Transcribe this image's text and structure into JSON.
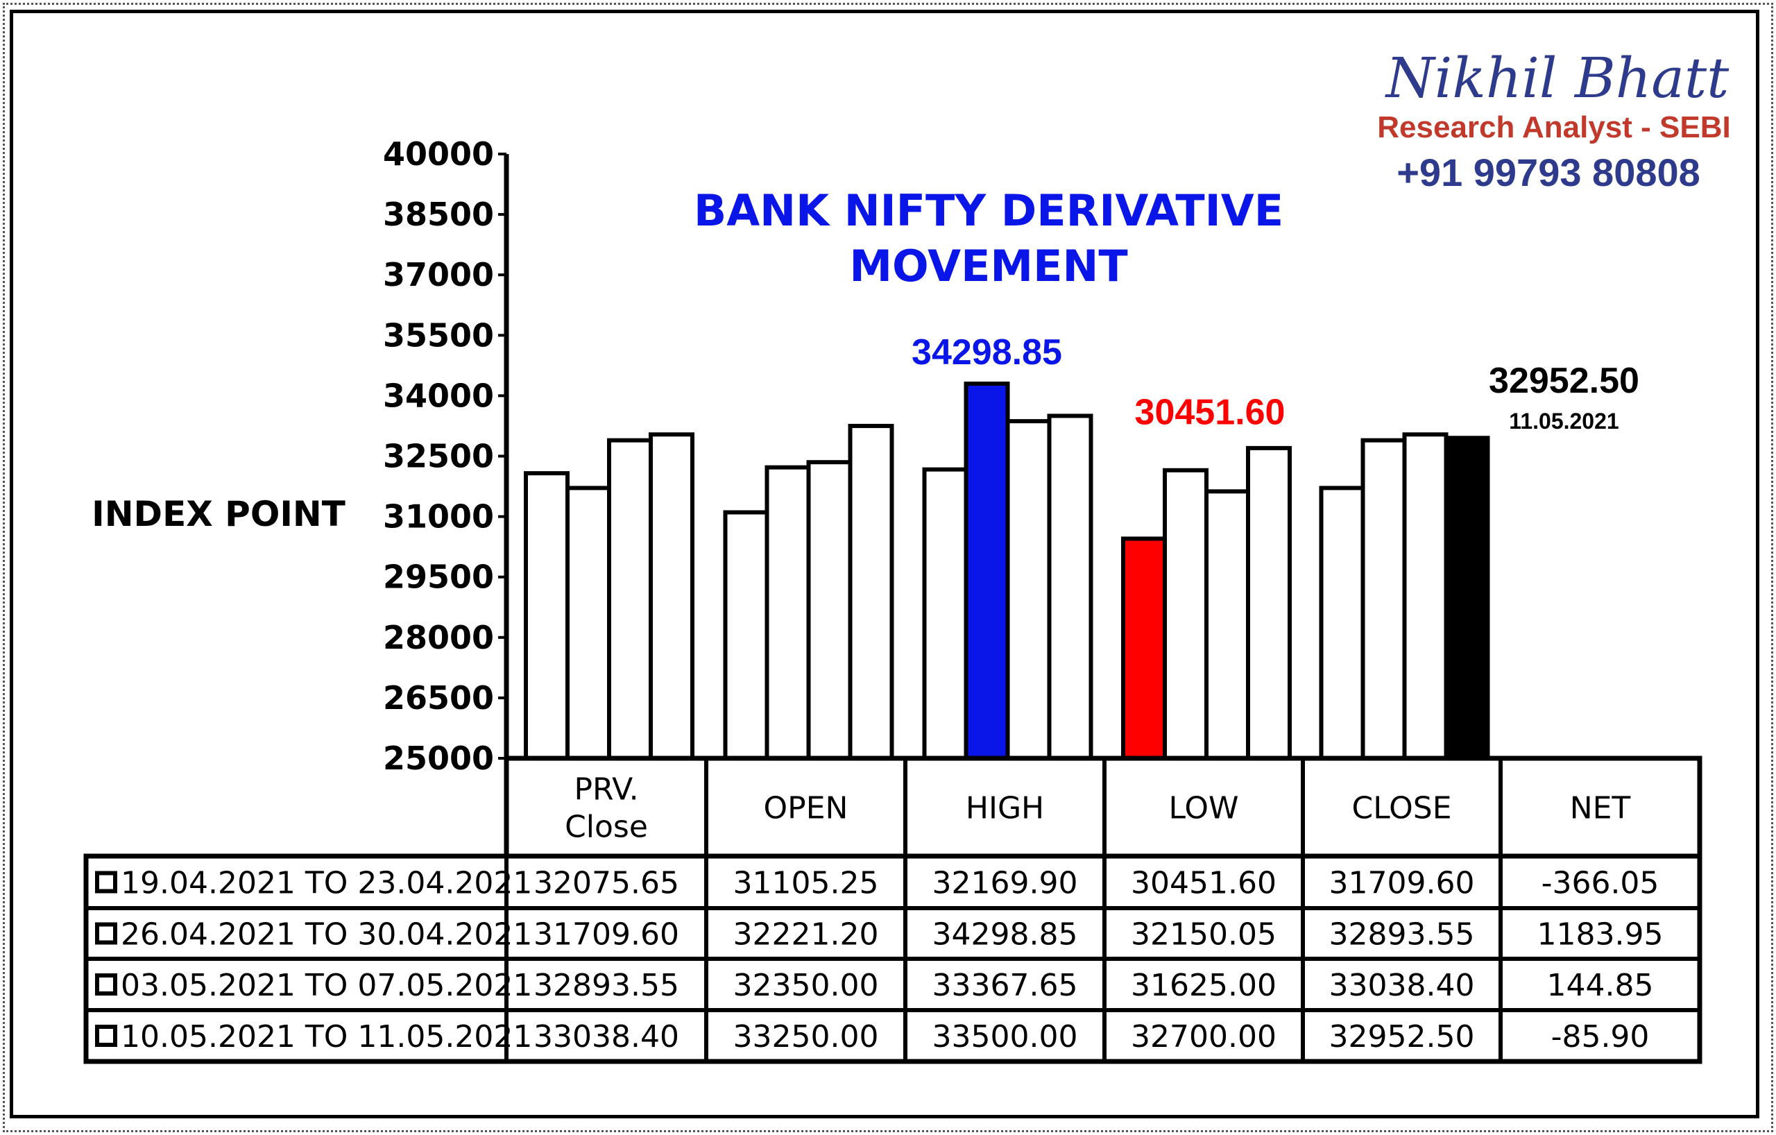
{
  "brand": {
    "name": "Nikhil Bhatt",
    "role": "Research Analyst - SEBI",
    "phone": "+91 99793 80808"
  },
  "colors": {
    "title": "#0a16e8",
    "high_highlight": "#0a16e8",
    "low_highlight": "#ff0000",
    "latest_close": "#000000",
    "bar_default": "#ffffff"
  },
  "chart_data": {
    "type": "bar",
    "title": "BANK NIFTY DERIVATIVE MOVEMENT",
    "title_lines": [
      "BANK NIFTY DERIVATIVE",
      "MOVEMENT"
    ],
    "ylabel": "INDEX POINT",
    "ylim": [
      25000,
      40000
    ],
    "yticks": [
      25000,
      26500,
      28000,
      29500,
      31000,
      32500,
      34000,
      35500,
      37000,
      38500,
      40000
    ],
    "grid": false,
    "legend": "table-below",
    "categories": [
      "PRV.\nClose",
      "OPEN",
      "HIGH",
      "LOW",
      "CLOSE"
    ],
    "category_lines": [
      [
        "PRV.",
        "Close"
      ],
      [
        "OPEN"
      ],
      [
        "HIGH"
      ],
      [
        "LOW"
      ],
      [
        "CLOSE"
      ]
    ],
    "series": [
      {
        "name": "19.04.2021 TO 23.04.2021",
        "values": [
          32075.65,
          31105.25,
          32169.9,
          30451.6,
          31709.6
        ]
      },
      {
        "name": "26.04.2021 TO 30.04.2021",
        "values": [
          31709.6,
          32221.2,
          34298.85,
          32150.05,
          32893.55
        ]
      },
      {
        "name": "03.05.2021 TO 07.05.2021",
        "values": [
          32893.55,
          32350.0,
          33367.65,
          31625.0,
          33038.4
        ]
      },
      {
        "name": "10.05.2021 TO 11.05.2021",
        "values": [
          33038.4,
          33250.0,
          33500.0,
          32700.0,
          32952.5
        ]
      }
    ],
    "highlights": [
      {
        "category": 2,
        "series": 1,
        "color": "#0a16e8"
      },
      {
        "category": 3,
        "series": 0,
        "color": "#ff0000"
      },
      {
        "category": 4,
        "series": 3,
        "color": "#000000"
      }
    ],
    "annotations": [
      {
        "text": "34298.85",
        "category": 2,
        "series": 1,
        "color": "#0a16e8"
      },
      {
        "text": "30451.60",
        "category": 3,
        "series": 0,
        "color": "#ff0000"
      },
      {
        "text": "32952.50",
        "sub": "11.05.2021",
        "category": 4,
        "series": 3,
        "color": "#000000"
      }
    ],
    "table": {
      "columns": [
        "PRV.\nClose",
        "OPEN",
        "HIGH",
        "LOW",
        "CLOSE",
        "NET"
      ],
      "rows": [
        {
          "label": "19.04.2021 TO 23.04.2021",
          "cells": [
            "32075.65",
            "31105.25",
            "32169.90",
            "30451.60",
            "31709.60",
            "-366.05"
          ]
        },
        {
          "label": "26.04.2021 TO 30.04.2021",
          "cells": [
            "31709.60",
            "32221.20",
            "34298.85",
            "32150.05",
            "32893.55",
            "1183.95"
          ]
        },
        {
          "label": "03.05.2021 TO 07.05.2021",
          "cells": [
            "32893.55",
            "32350.00",
            "33367.65",
            "31625.00",
            "33038.40",
            "144.85"
          ]
        },
        {
          "label": "10.05.2021 TO 11.05.2021",
          "cells": [
            "33038.40",
            "33250.00",
            "33500.00",
            "32700.00",
            "32952.50",
            "-85.90"
          ]
        }
      ]
    }
  }
}
